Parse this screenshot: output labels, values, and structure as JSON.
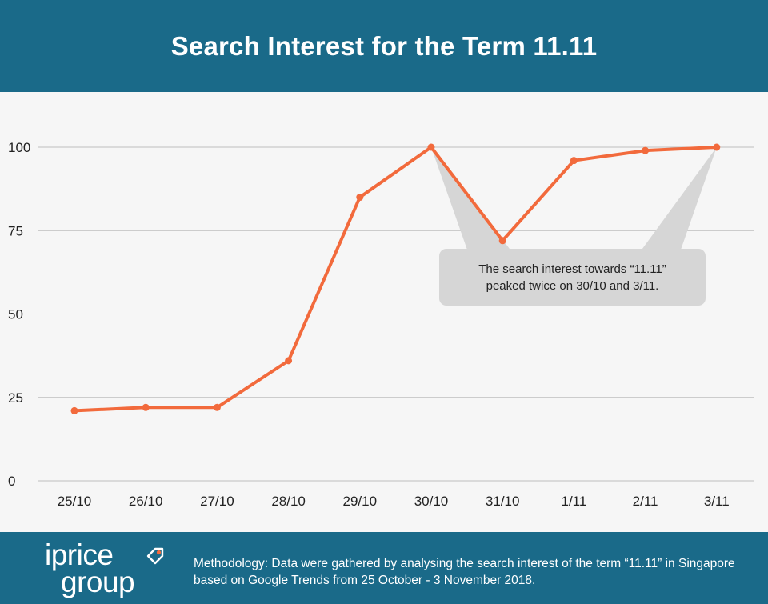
{
  "header": {
    "title": "Search Interest for the Term 11.11"
  },
  "chart_data": {
    "type": "line",
    "title": "Search Interest for the Term 11.11",
    "categories": [
      "25/10",
      "26/10",
      "27/10",
      "28/10",
      "29/10",
      "30/10",
      "31/10",
      "1/11",
      "2/11",
      "3/11"
    ],
    "series": [
      {
        "values": [
          21,
          22,
          22,
          36,
          85,
          100,
          72,
          96,
          99,
          100
        ]
      }
    ],
    "ylim": [
      0,
      100
    ],
    "yticks": [
      0,
      25,
      50,
      75,
      100
    ],
    "grid": true,
    "colors": {
      "line": "#f26a3c",
      "grid": "#bdbdbd",
      "axis_text": "#222222"
    },
    "annotation": {
      "line1": "The search interest towards “11.11”",
      "line2": "peaked twice on 30/10 and 3/11.",
      "points_to": [
        "30/10",
        "3/11"
      ]
    }
  },
  "footer": {
    "logo_line1": "iprice",
    "logo_line2": "group",
    "logo_icon": "tag-icon",
    "methodology": "Methodology: Data were gathered by analysing the search interest of the term “11.11” in Singapore based on Google Trends from 25 October - 3 November 2018."
  }
}
